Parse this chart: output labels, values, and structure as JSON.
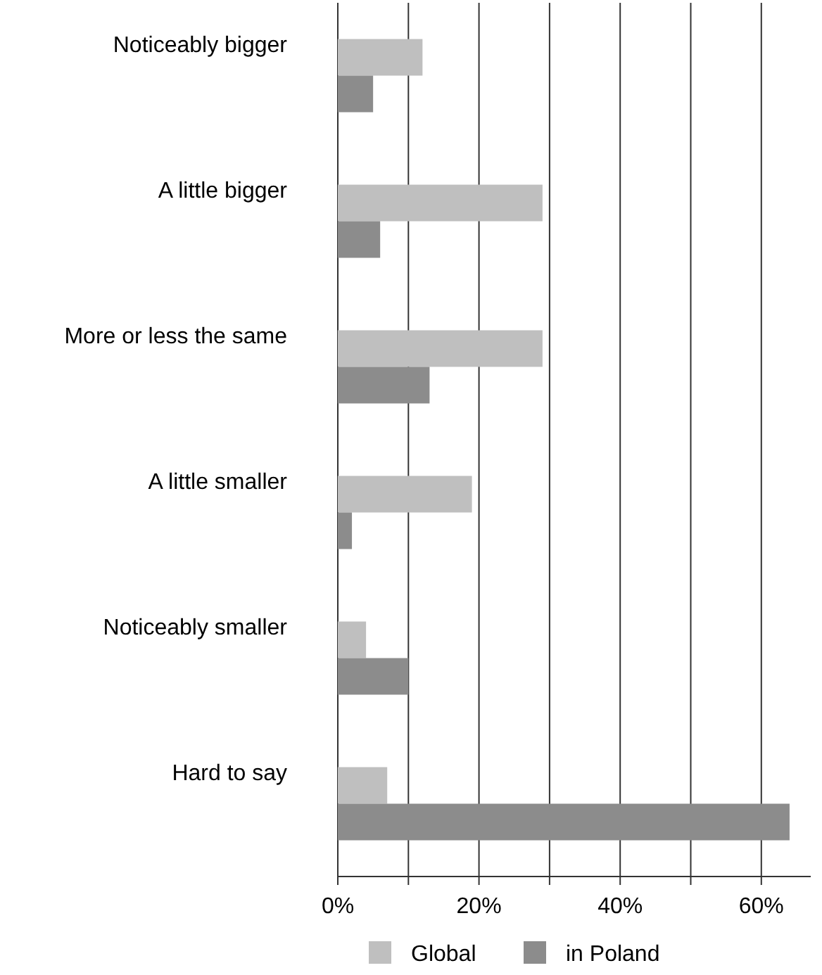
{
  "chart_data": {
    "type": "bar",
    "orientation": "horizontal",
    "categories": [
      "Noticeably bigger",
      "A little bigger",
      "More or less the same",
      "A little smaller",
      "Noticeably smaller",
      "Hard to say"
    ],
    "series": [
      {
        "name": "Global",
        "color": "#bfbfbf",
        "values": [
          12,
          29,
          29,
          19,
          4,
          7
        ]
      },
      {
        "name": "in Poland",
        "color": "#8c8c8c",
        "values": [
          5,
          6,
          13,
          2,
          10,
          64
        ]
      }
    ],
    "xlim": [
      0,
      67
    ],
    "xticks": [
      {
        "value": 0,
        "label": "0%"
      },
      {
        "value": 10,
        "label": null
      },
      {
        "value": 20,
        "label": "20%"
      },
      {
        "value": 30,
        "label": null
      },
      {
        "value": 40,
        "label": "40%"
      },
      {
        "value": 50,
        "label": null
      },
      {
        "value": 60,
        "label": "60%"
      }
    ],
    "grid": "x",
    "legend": "bottom"
  }
}
